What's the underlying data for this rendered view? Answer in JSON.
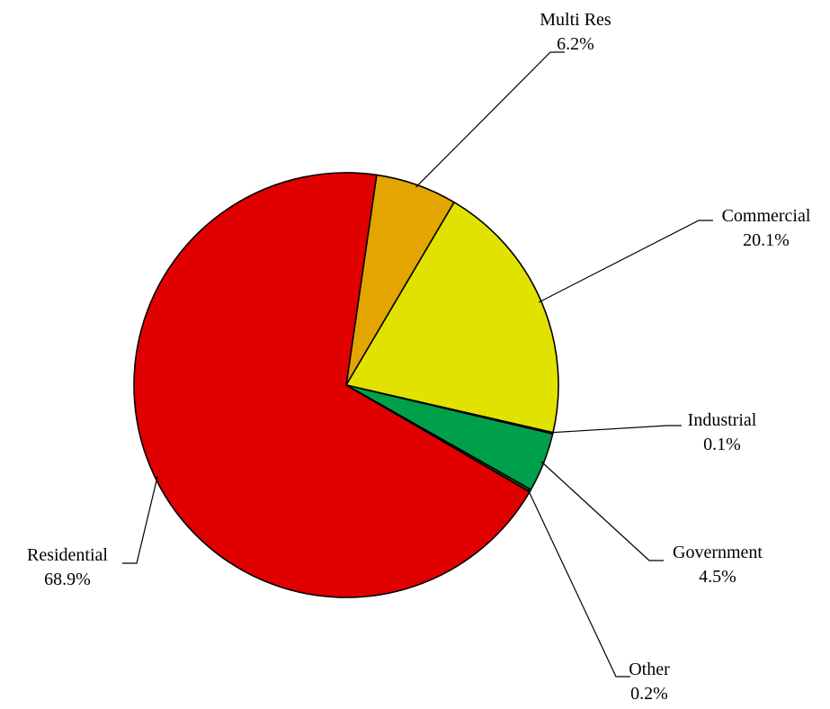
{
  "chart_data": {
    "type": "pie",
    "title": "",
    "slices": [
      {
        "name": "Multi Res",
        "label": "Multi Res",
        "pct_label": "6.2%",
        "value": 6.2,
        "color": "#E3A600"
      },
      {
        "name": "Commercial",
        "label": "Commercial",
        "pct_label": "20.1%",
        "value": 20.1,
        "color": "#E2E200"
      },
      {
        "name": "Industrial",
        "label": "Industrial",
        "pct_label": "0.1%",
        "value": 0.1,
        "color": "#0A8A2E"
      },
      {
        "name": "Government",
        "label": "Government",
        "pct_label": "4.5%",
        "value": 4.5,
        "color": "#00A04A"
      },
      {
        "name": "Other",
        "label": "Other",
        "pct_label": "0.2%",
        "value": 0.2,
        "color": "#006B2A"
      },
      {
        "name": "Residential",
        "label": "Residential",
        "pct_label": "68.9%",
        "value": 68.9,
        "color": "#E10000"
      }
    ],
    "legend": "none",
    "data_labels": "outside-with-leader-lines"
  }
}
